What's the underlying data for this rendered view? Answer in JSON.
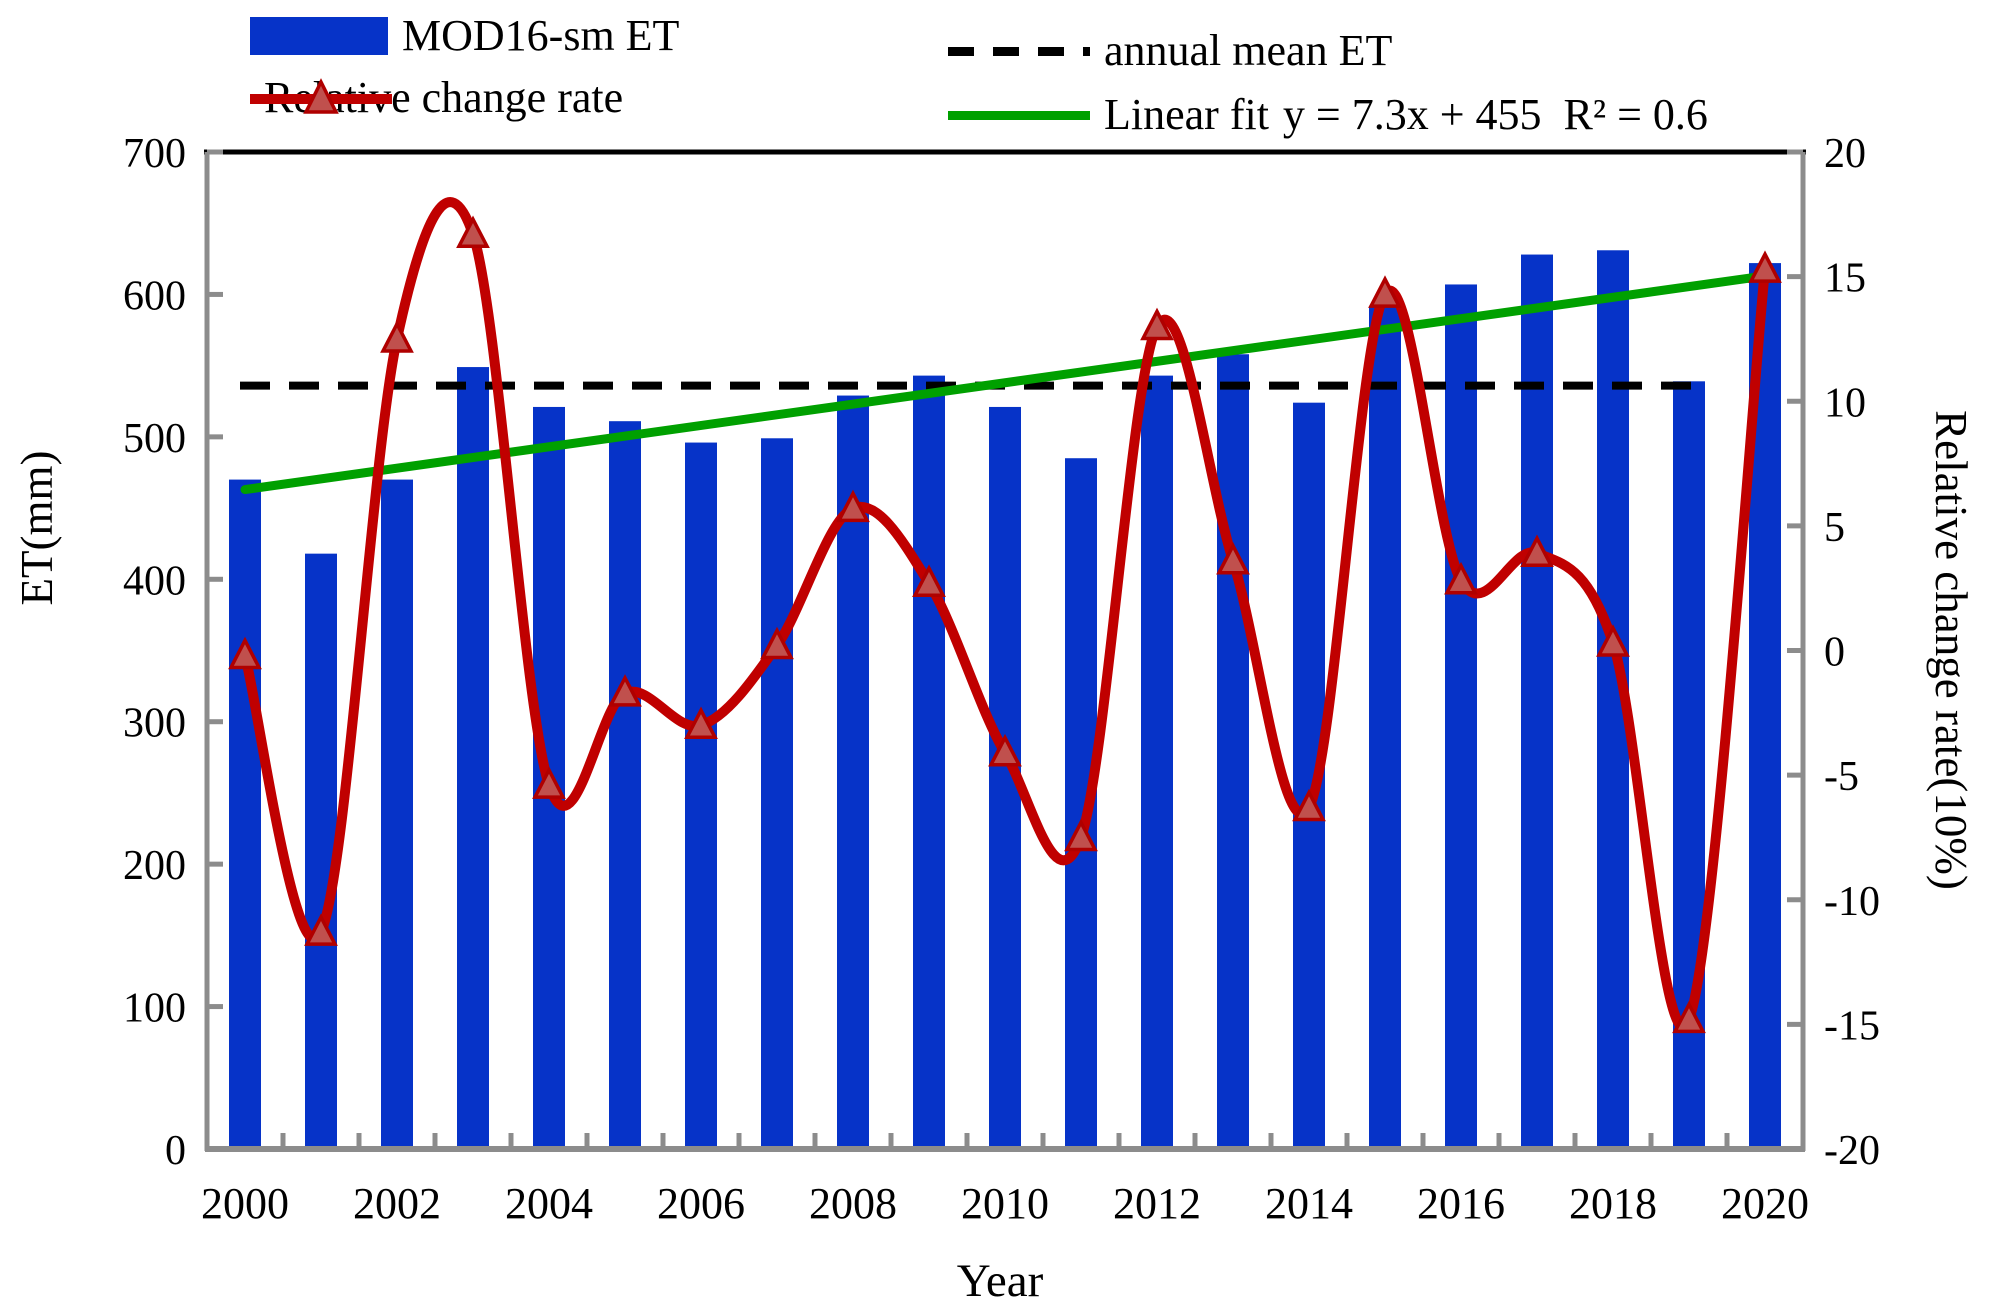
{
  "legend": {
    "note": "legend labels are bound from chart_data.series names"
  },
  "chart_data": {
    "type": "combo",
    "title": "",
    "x": [
      2000,
      2001,
      2002,
      2003,
      2004,
      2005,
      2006,
      2007,
      2008,
      2009,
      2010,
      2011,
      2012,
      2013,
      2014,
      2015,
      2016,
      2017,
      2018,
      2019,
      2020
    ],
    "series": [
      {
        "name": "MOD16-sm ET",
        "type": "bar",
        "axis": "left",
        "color": "#0633C8",
        "values": [
          470,
          418,
          470,
          549,
          521,
          511,
          496,
          499,
          529,
          543,
          521,
          485,
          543,
          558,
          524,
          592,
          607,
          628,
          631,
          539,
          622
        ]
      },
      {
        "name": "Relative change rate",
        "type": "line",
        "axis": "right",
        "color": "#C00000",
        "marker": "triangle",
        "marker_fill": "#C0504D",
        "marker_stroke": "#B00000",
        "values": [
          -0.2,
          -11.3,
          12.5,
          16.7,
          -5.4,
          -1.7,
          -3.0,
          0.2,
          5.7,
          2.7,
          -4.1,
          -7.5,
          13.0,
          3.6,
          -6.3,
          14.3,
          2.8,
          3.9,
          0.3,
          -14.8,
          15.3
        ]
      },
      {
        "name": "annual mean ET",
        "type": "hline",
        "axis": "left",
        "style": "dashed",
        "color": "#000000",
        "value": 536
      },
      {
        "name": "Linear fit",
        "type": "trend",
        "axis": "left",
        "color": "#00A000",
        "equation_label": "y = 7.3x + 455  R² = 0.6",
        "points": [
          [
            2000,
            463
          ],
          [
            2020,
            613
          ]
        ]
      }
    ],
    "left_axis": {
      "label": "ET(mm)",
      "min": 0,
      "max": 700,
      "step": 100
    },
    "right_axis": {
      "label": "Relative change rate(10%)",
      "min": -20,
      "max": 20,
      "step": 5
    },
    "x_axis": {
      "label": "Year",
      "tick_labels": [
        "2000",
        "2002",
        "2004",
        "2006",
        "2008",
        "2010",
        "2012",
        "2014",
        "2016",
        "2018",
        "2020"
      ]
    },
    "grid": false,
    "legend_position": "top"
  }
}
